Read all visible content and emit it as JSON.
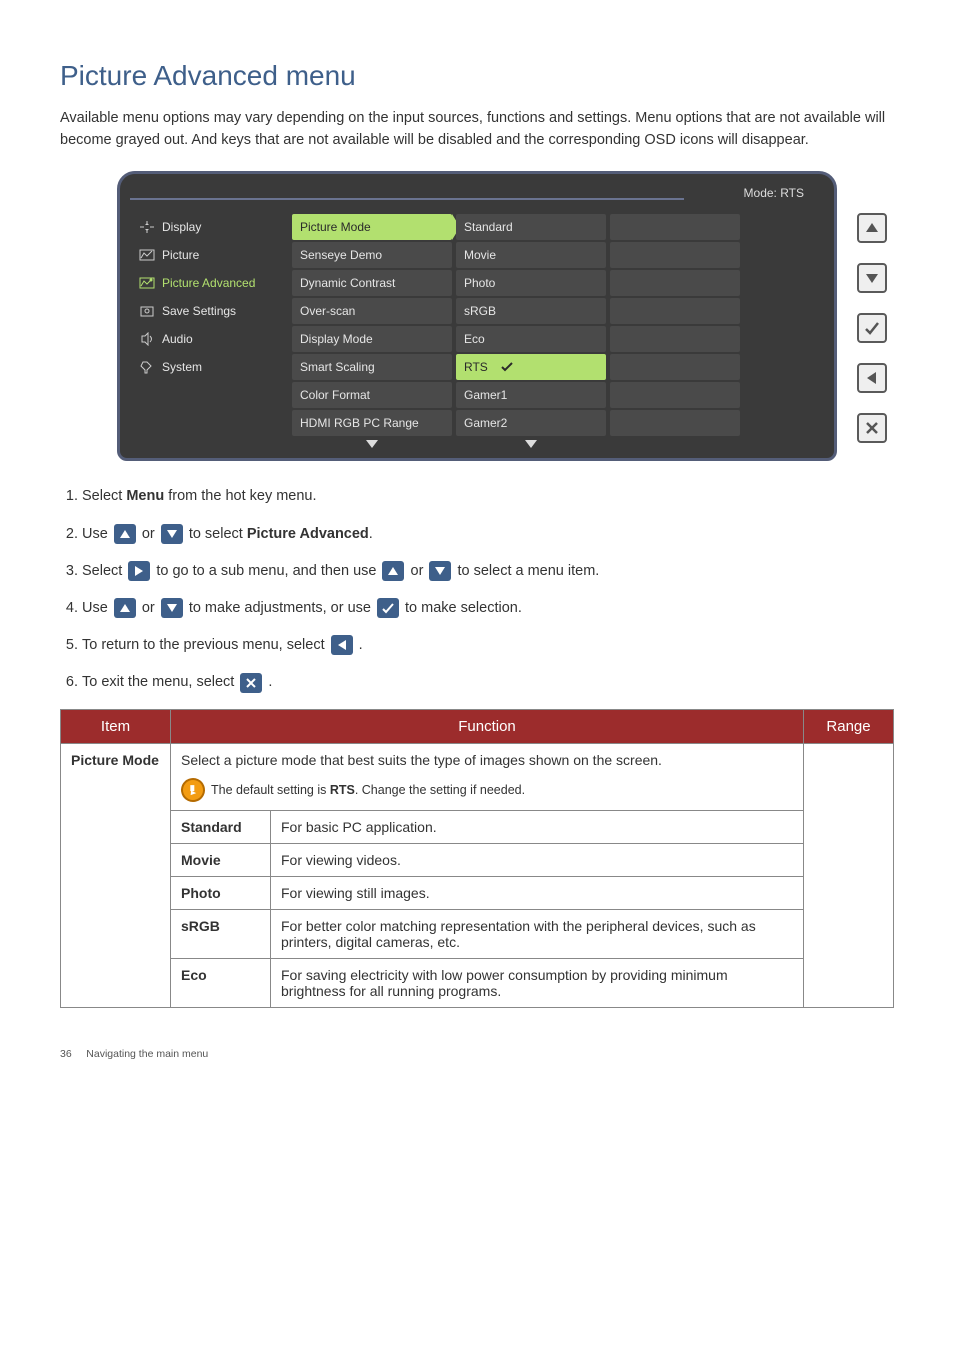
{
  "title": "Picture Advanced menu",
  "intro": "Available menu options may vary depending on the input sources, functions and settings. Menu options that are not available will become grayed out. And keys that are not available will be disabled and the corresponding OSD icons will disappear.",
  "osd": {
    "mode_label": "Mode: RTS",
    "cats": [
      {
        "label": "Display",
        "selected": false
      },
      {
        "label": "Picture",
        "selected": false
      },
      {
        "label": "Picture Advanced",
        "selected": true
      },
      {
        "label": "Save Settings",
        "selected": false
      },
      {
        "label": "Audio",
        "selected": false
      },
      {
        "label": "System",
        "selected": false
      }
    ],
    "subs": [
      {
        "label": "Picture Mode",
        "selected": true
      },
      {
        "label": "Senseye Demo",
        "selected": false
      },
      {
        "label": "Dynamic Contrast",
        "selected": false
      },
      {
        "label": "Over-scan",
        "selected": false
      },
      {
        "label": "Display Mode",
        "selected": false
      },
      {
        "label": "Smart Scaling",
        "selected": false
      },
      {
        "label": "Color Format",
        "selected": false
      },
      {
        "label": "HDMI RGB PC Range",
        "selected": false
      }
    ],
    "opts": [
      {
        "label": "Standard",
        "selected": false
      },
      {
        "label": "Movie",
        "selected": false
      },
      {
        "label": "Photo",
        "selected": false
      },
      {
        "label": "sRGB",
        "selected": false
      },
      {
        "label": "Eco",
        "selected": false
      },
      {
        "label": "RTS",
        "selected": true
      },
      {
        "label": "Gamer1",
        "selected": false
      },
      {
        "label": "Gamer2",
        "selected": false
      }
    ]
  },
  "steps": {
    "s1_a": "Select ",
    "s1_b": "Menu",
    "s1_c": " from the hot key menu.",
    "s2_a": "Use ",
    "s2_b": " or ",
    "s2_c": " to select ",
    "s2_d": "Picture Advanced",
    "s2_e": ".",
    "s3_a": "Select ",
    "s3_b": " to go to a sub menu, and then use ",
    "s3_c": " or ",
    "s3_d": " to select a menu item.",
    "s4_a": "Use ",
    "s4_b": " or ",
    "s4_c": " to make adjustments, or use ",
    "s4_d": " to make selection.",
    "s5_a": "To return to the previous menu, select ",
    "s5_b": ".",
    "s6_a": "To exit the menu, select ",
    "s6_b": "."
  },
  "table": {
    "headers": {
      "item": "Item",
      "function": "Function",
      "range": "Range"
    },
    "item1": "Picture Mode",
    "desc1": "Select a picture mode that best suits the type of images shown on the screen.",
    "note1_a": "The default setting is ",
    "note1_b": "RTS",
    "note1_c": ". Change the setting if needed.",
    "rows": [
      {
        "name": "Standard",
        "desc": "For basic PC application."
      },
      {
        "name": "Movie",
        "desc": "For viewing videos."
      },
      {
        "name": "Photo",
        "desc": "For viewing still images."
      },
      {
        "name": "sRGB",
        "desc": "For better color matching representation with the peripheral devices, such as printers, digital cameras, etc."
      },
      {
        "name": "Eco",
        "desc": "For saving electricity with low power consumption by providing minimum brightness for all running programs."
      }
    ]
  },
  "footer": {
    "page": "36",
    "section": "Navigating the main menu"
  }
}
